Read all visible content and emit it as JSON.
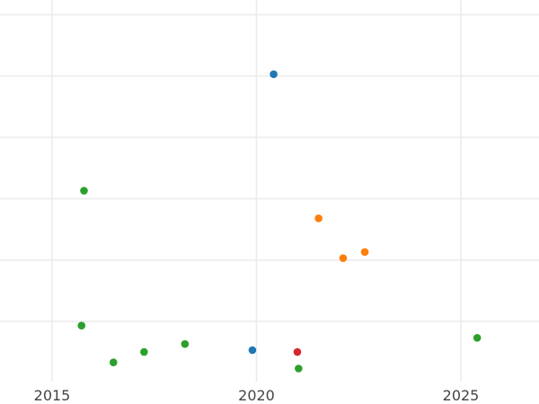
{
  "chart_data": {
    "type": "scatter",
    "title": "",
    "xlabel": "",
    "ylabel": "",
    "xlim": [
      2014.0,
      2026.8
    ],
    "ylim": [
      -0.6,
      5.6
    ],
    "x_ticks": [
      2015,
      2020,
      2025
    ],
    "x_tick_labels": [
      "2015",
      "2020",
      "2025"
    ],
    "y_gridlines": [
      0,
      1,
      2,
      3,
      4,
      5
    ],
    "y_tick_labels": [],
    "grid": true,
    "legend": "none",
    "series": [
      {
        "color": "#1f77b4",
        "points": [
          {
            "x": 2020.42,
            "y": 4.5
          },
          {
            "x": 2019.9,
            "y": 0.0
          }
        ]
      },
      {
        "color": "#ff7f0e",
        "points": [
          {
            "x": 2021.52,
            "y": 2.15
          },
          {
            "x": 2022.12,
            "y": 1.5
          },
          {
            "x": 2022.65,
            "y": 1.6
          }
        ]
      },
      {
        "color": "#2ca02c",
        "points": [
          {
            "x": 2015.78,
            "y": 2.6
          },
          {
            "x": 2015.72,
            "y": 0.4
          },
          {
            "x": 2016.5,
            "y": -0.2
          },
          {
            "x": 2017.25,
            "y": -0.03
          },
          {
            "x": 2018.25,
            "y": 0.1
          },
          {
            "x": 2021.03,
            "y": -0.3
          },
          {
            "x": 2025.4,
            "y": 0.2
          }
        ]
      },
      {
        "color": "#d62728",
        "points": [
          {
            "x": 2021.0,
            "y": -0.03
          }
        ]
      }
    ]
  }
}
